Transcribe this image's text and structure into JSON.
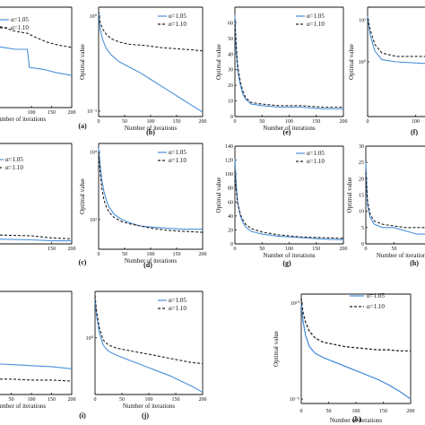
{
  "chart_data": [
    {
      "panel": "(a)",
      "type": "line",
      "xlabel": "Number of iterations",
      "ylabel": "",
      "xticks": [
        "100",
        "150",
        "200"
      ],
      "yticks": [],
      "legend": [
        "α=1.05",
        "α=1.10"
      ],
      "series": [
        {
          "name": "α=1.05",
          "color": "#4a90d9",
          "style": "solid",
          "x": [
            0,
            30,
            60,
            90,
            95,
            130,
            160,
            200
          ],
          "y": [
            0.62,
            0.6,
            0.58,
            0.58,
            0.4,
            0.38,
            0.35,
            0.32
          ]
        },
        {
          "name": "α=1.10",
          "color": "#222222",
          "style": "dashed",
          "x": [
            0,
            30,
            60,
            90,
            110,
            140,
            170,
            200
          ],
          "y": [
            0.82,
            0.8,
            0.76,
            0.74,
            0.7,
            0.65,
            0.62,
            0.6
          ]
        }
      ]
    },
    {
      "panel": "(b)",
      "type": "line",
      "xlabel": "Number of iterations",
      "ylabel": "Optimal value",
      "xticks": [
        "0",
        "50",
        "100",
        "150",
        "200"
      ],
      "yticks": [
        "10⁰",
        "10⁻²"
      ],
      "legend": [
        "α=1.05",
        "α=1.10"
      ],
      "series": [
        {
          "name": "α=1.05",
          "color": "#4a90d9",
          "style": "solid",
          "x": [
            0,
            3,
            8,
            15,
            25,
            40,
            60,
            80,
            100,
            120,
            140,
            160,
            180,
            200
          ],
          "y": [
            0.96,
            0.8,
            0.7,
            0.62,
            0.56,
            0.5,
            0.45,
            0.4,
            0.34,
            0.28,
            0.22,
            0.16,
            0.1,
            0.04
          ]
        },
        {
          "name": "α=1.10",
          "color": "#222222",
          "style": "dashed",
          "x": [
            0,
            3,
            8,
            15,
            25,
            40,
            60,
            90,
            120,
            150,
            180,
            200
          ],
          "y": [
            0.96,
            0.86,
            0.8,
            0.75,
            0.71,
            0.68,
            0.66,
            0.65,
            0.63,
            0.62,
            0.61,
            0.6
          ]
        }
      ]
    },
    {
      "panel": "(e)",
      "type": "line",
      "xlabel": "Number of iterations",
      "ylabel": "Optimal value",
      "xticks": [
        "0",
        "50",
        "100",
        "150",
        "200"
      ],
      "yticks": [
        "0",
        "10",
        "20",
        "30",
        "40",
        "50",
        "60"
      ],
      "legend": [
        "α=1.05",
        "α=1.10"
      ],
      "series": [
        {
          "name": "α=1.05",
          "color": "#4a90d9",
          "style": "solid",
          "x": [
            0,
            2,
            5,
            10,
            15,
            20,
            30,
            50,
            80,
            120,
            160,
            200
          ],
          "y": [
            65,
            44,
            30,
            20,
            14,
            11,
            8,
            7,
            6,
            6,
            5,
            5
          ]
        },
        {
          "name": "α=1.10",
          "color": "#222222",
          "style": "dashed",
          "x": [
            0,
            2,
            5,
            10,
            15,
            20,
            30,
            50,
            80,
            120,
            160,
            200
          ],
          "y": [
            62,
            48,
            33,
            22,
            16,
            12,
            9,
            8,
            7,
            7,
            6,
            6
          ]
        }
      ]
    },
    {
      "panel": "(f)",
      "type": "line",
      "xlabel": "",
      "ylabel": "Optimal value",
      "xticks": [
        "0",
        "100"
      ],
      "yticks": [
        "10¹",
        "10⁰"
      ],
      "legend": [],
      "series": [
        {
          "name": "α=1.05",
          "color": "#4a90d9",
          "style": "solid",
          "x": [
            0,
            5,
            15,
            30,
            60,
            100,
            140
          ],
          "y": [
            0.92,
            0.75,
            0.6,
            0.52,
            0.5,
            0.49,
            0.48
          ]
        },
        {
          "name": "α=1.10",
          "color": "#222222",
          "style": "dashed",
          "x": [
            0,
            5,
            15,
            30,
            60,
            100,
            140
          ],
          "y": [
            0.9,
            0.8,
            0.66,
            0.58,
            0.55,
            0.55,
            0.55
          ]
        }
      ]
    },
    {
      "panel": "(c)",
      "type": "line",
      "xlabel": "",
      "ylabel": "",
      "xticks": [
        "150",
        "200"
      ],
      "yticks": [],
      "legend": [
        "α=1.05",
        "α=1.10"
      ],
      "series": [
        {
          "name": "α=1.05",
          "color": "#4a90d9",
          "style": "solid",
          "x": [
            0,
            100,
            150,
            200
          ],
          "y": [
            0.05,
            0.04,
            0.03,
            0.03
          ]
        },
        {
          "name": "α=1.10",
          "color": "#222222",
          "style": "dashed",
          "x": [
            0,
            100,
            150,
            200
          ],
          "y": [
            0.09,
            0.08,
            0.06,
            0.05
          ]
        }
      ]
    },
    {
      "panel": "(d)",
      "type": "line",
      "xlabel": "Number of iterations",
      "ylabel": "Optimal value",
      "xticks": [
        "0",
        "50",
        "100",
        "150",
        "200"
      ],
      "yticks": [
        "10⁴",
        "10²"
      ],
      "legend": [
        "α=1.05",
        "α=1.10"
      ],
      "series": [
        {
          "name": "α=1.05",
          "color": "#4a90d9",
          "style": "solid",
          "x": [
            0,
            3,
            6,
            10,
            15,
            20,
            30,
            45,
            60,
            80,
            100,
            130,
            160,
            200
          ],
          "y": [
            0.96,
            0.8,
            0.66,
            0.55,
            0.46,
            0.4,
            0.33,
            0.28,
            0.25,
            0.22,
            0.21,
            0.2,
            0.19,
            0.19
          ]
        },
        {
          "name": "α=1.10",
          "color": "#222222",
          "style": "dashed",
          "x": [
            0,
            3,
            6,
            10,
            15,
            20,
            30,
            45,
            60,
            80,
            100,
            130,
            160,
            200
          ],
          "y": [
            0.92,
            0.72,
            0.58,
            0.47,
            0.4,
            0.35,
            0.3,
            0.26,
            0.24,
            0.22,
            0.2,
            0.18,
            0.17,
            0.16
          ]
        }
      ]
    },
    {
      "panel": "(g)",
      "type": "line",
      "xlabel": "Number of iterations",
      "ylabel": "Optimal value",
      "xticks": [
        "0",
        "50",
        "100",
        "150",
        "200"
      ],
      "yticks": [
        "0",
        "20",
        "40",
        "60",
        "80",
        "100",
        "120",
        "140"
      ],
      "legend": [
        "α=1.05",
        "α=1.10"
      ],
      "series": [
        {
          "name": "α=1.05",
          "color": "#4a90d9",
          "style": "solid",
          "x": [
            0,
            2,
            5,
            10,
            15,
            20,
            30,
            50,
            80,
            120,
            160,
            200
          ],
          "y": [
            122,
            90,
            60,
            40,
            30,
            24,
            18,
            14,
            11,
            9,
            7,
            6
          ]
        },
        {
          "name": "α=1.10",
          "color": "#222222",
          "style": "dashed",
          "x": [
            0,
            2,
            5,
            10,
            15,
            20,
            30,
            50,
            80,
            120,
            160,
            200
          ],
          "y": [
            105,
            80,
            58,
            42,
            34,
            28,
            22,
            17,
            13,
            10,
            9,
            8
          ]
        }
      ]
    },
    {
      "panel": "(h)",
      "type": "line",
      "xlabel": "Number of iterations",
      "ylabel": "Optimal value",
      "xticks": [
        "0",
        "50"
      ],
      "yticks": [
        "0",
        "5",
        "10",
        "15",
        "20",
        "25",
        "30"
      ],
      "legend": [],
      "series": [
        {
          "name": "α=1.05",
          "color": "#4a90d9",
          "style": "solid",
          "x": [
            0,
            3,
            8,
            15,
            30,
            50,
            70,
            90,
            110,
            120
          ],
          "y": [
            25,
            12,
            8,
            6,
            5,
            5,
            4,
            3,
            3,
            2
          ]
        },
        {
          "name": "α=1.10",
          "color": "#222222",
          "style": "dashed",
          "x": [
            0,
            3,
            8,
            15,
            30,
            50,
            70,
            90,
            110,
            120
          ],
          "y": [
            22,
            13,
            9,
            7,
            6,
            5.5,
            5,
            5,
            5,
            5
          ]
        }
      ]
    },
    {
      "panel": "(i)",
      "type": "line",
      "xlabel": "Number of iterations",
      "ylabel": "",
      "xticks": [
        "50",
        "100",
        "150",
        "200"
      ],
      "yticks": [],
      "legend": [],
      "series": [
        {
          "name": "α=1.05",
          "color": "#4a90d9",
          "style": "solid",
          "x": [
            0,
            50,
            100,
            150,
            200
          ],
          "y": [
            0.3,
            0.29,
            0.28,
            0.27,
            0.25
          ]
        },
        {
          "name": "α=1.10",
          "color": "#222222",
          "style": "dashed",
          "x": [
            0,
            50,
            100,
            150,
            200
          ],
          "y": [
            0.15,
            0.15,
            0.14,
            0.14,
            0.13
          ]
        }
      ]
    },
    {
      "panel": "(j)",
      "type": "line",
      "xlabel": "Number of iterations",
      "ylabel": "",
      "xticks": [
        "0",
        "50",
        "100",
        "150",
        "200"
      ],
      "yticks": [
        "10⁰"
      ],
      "legend": [
        "α=1.05",
        "α=1.10"
      ],
      "series": [
        {
          "name": "α=1.05",
          "color": "#4a90d9",
          "style": "solid",
          "x": [
            0,
            3,
            8,
            15,
            25,
            40,
            60,
            80,
            100,
            120,
            140,
            160,
            180,
            200
          ],
          "y": [
            0.92,
            0.76,
            0.6,
            0.48,
            0.42,
            0.38,
            0.34,
            0.3,
            0.26,
            0.22,
            0.18,
            0.13,
            0.08,
            0.02
          ]
        },
        {
          "name": "α=1.10",
          "color": "#222222",
          "style": "dashed",
          "x": [
            0,
            3,
            8,
            15,
            25,
            40,
            60,
            80,
            100,
            120,
            140,
            160,
            180,
            200
          ],
          "y": [
            0.96,
            0.8,
            0.65,
            0.53,
            0.48,
            0.45,
            0.43,
            0.41,
            0.39,
            0.37,
            0.35,
            0.33,
            0.31,
            0.3
          ]
        }
      ]
    },
    {
      "panel": "(k)",
      "type": "line",
      "xlabel": "Number of iterations",
      "ylabel": "Optimal value",
      "xticks": [
        "0",
        "50",
        "100",
        "150",
        "200"
      ],
      "yticks": [
        "10¹⁰",
        "10⁻⁵"
      ],
      "legend": [
        "α=1.05",
        "α=1.10"
      ],
      "series": [
        {
          "name": "α=1.05",
          "color": "#4a90d9",
          "style": "solid",
          "x": [
            0,
            3,
            8,
            15,
            25,
            40,
            60,
            80,
            100,
            120,
            140,
            160,
            180,
            200
          ],
          "y": [
            0.92,
            0.76,
            0.62,
            0.52,
            0.46,
            0.42,
            0.38,
            0.34,
            0.3,
            0.26,
            0.22,
            0.17,
            0.11,
            0.04
          ]
        },
        {
          "name": "α=1.10",
          "color": "#222222",
          "style": "dashed",
          "x": [
            0,
            3,
            8,
            15,
            25,
            40,
            60,
            80,
            100,
            120,
            140,
            160,
            180,
            200
          ],
          "y": [
            0.96,
            0.84,
            0.74,
            0.66,
            0.6,
            0.56,
            0.54,
            0.52,
            0.51,
            0.5,
            0.49,
            0.49,
            0.48,
            0.48
          ]
        }
      ]
    }
  ]
}
